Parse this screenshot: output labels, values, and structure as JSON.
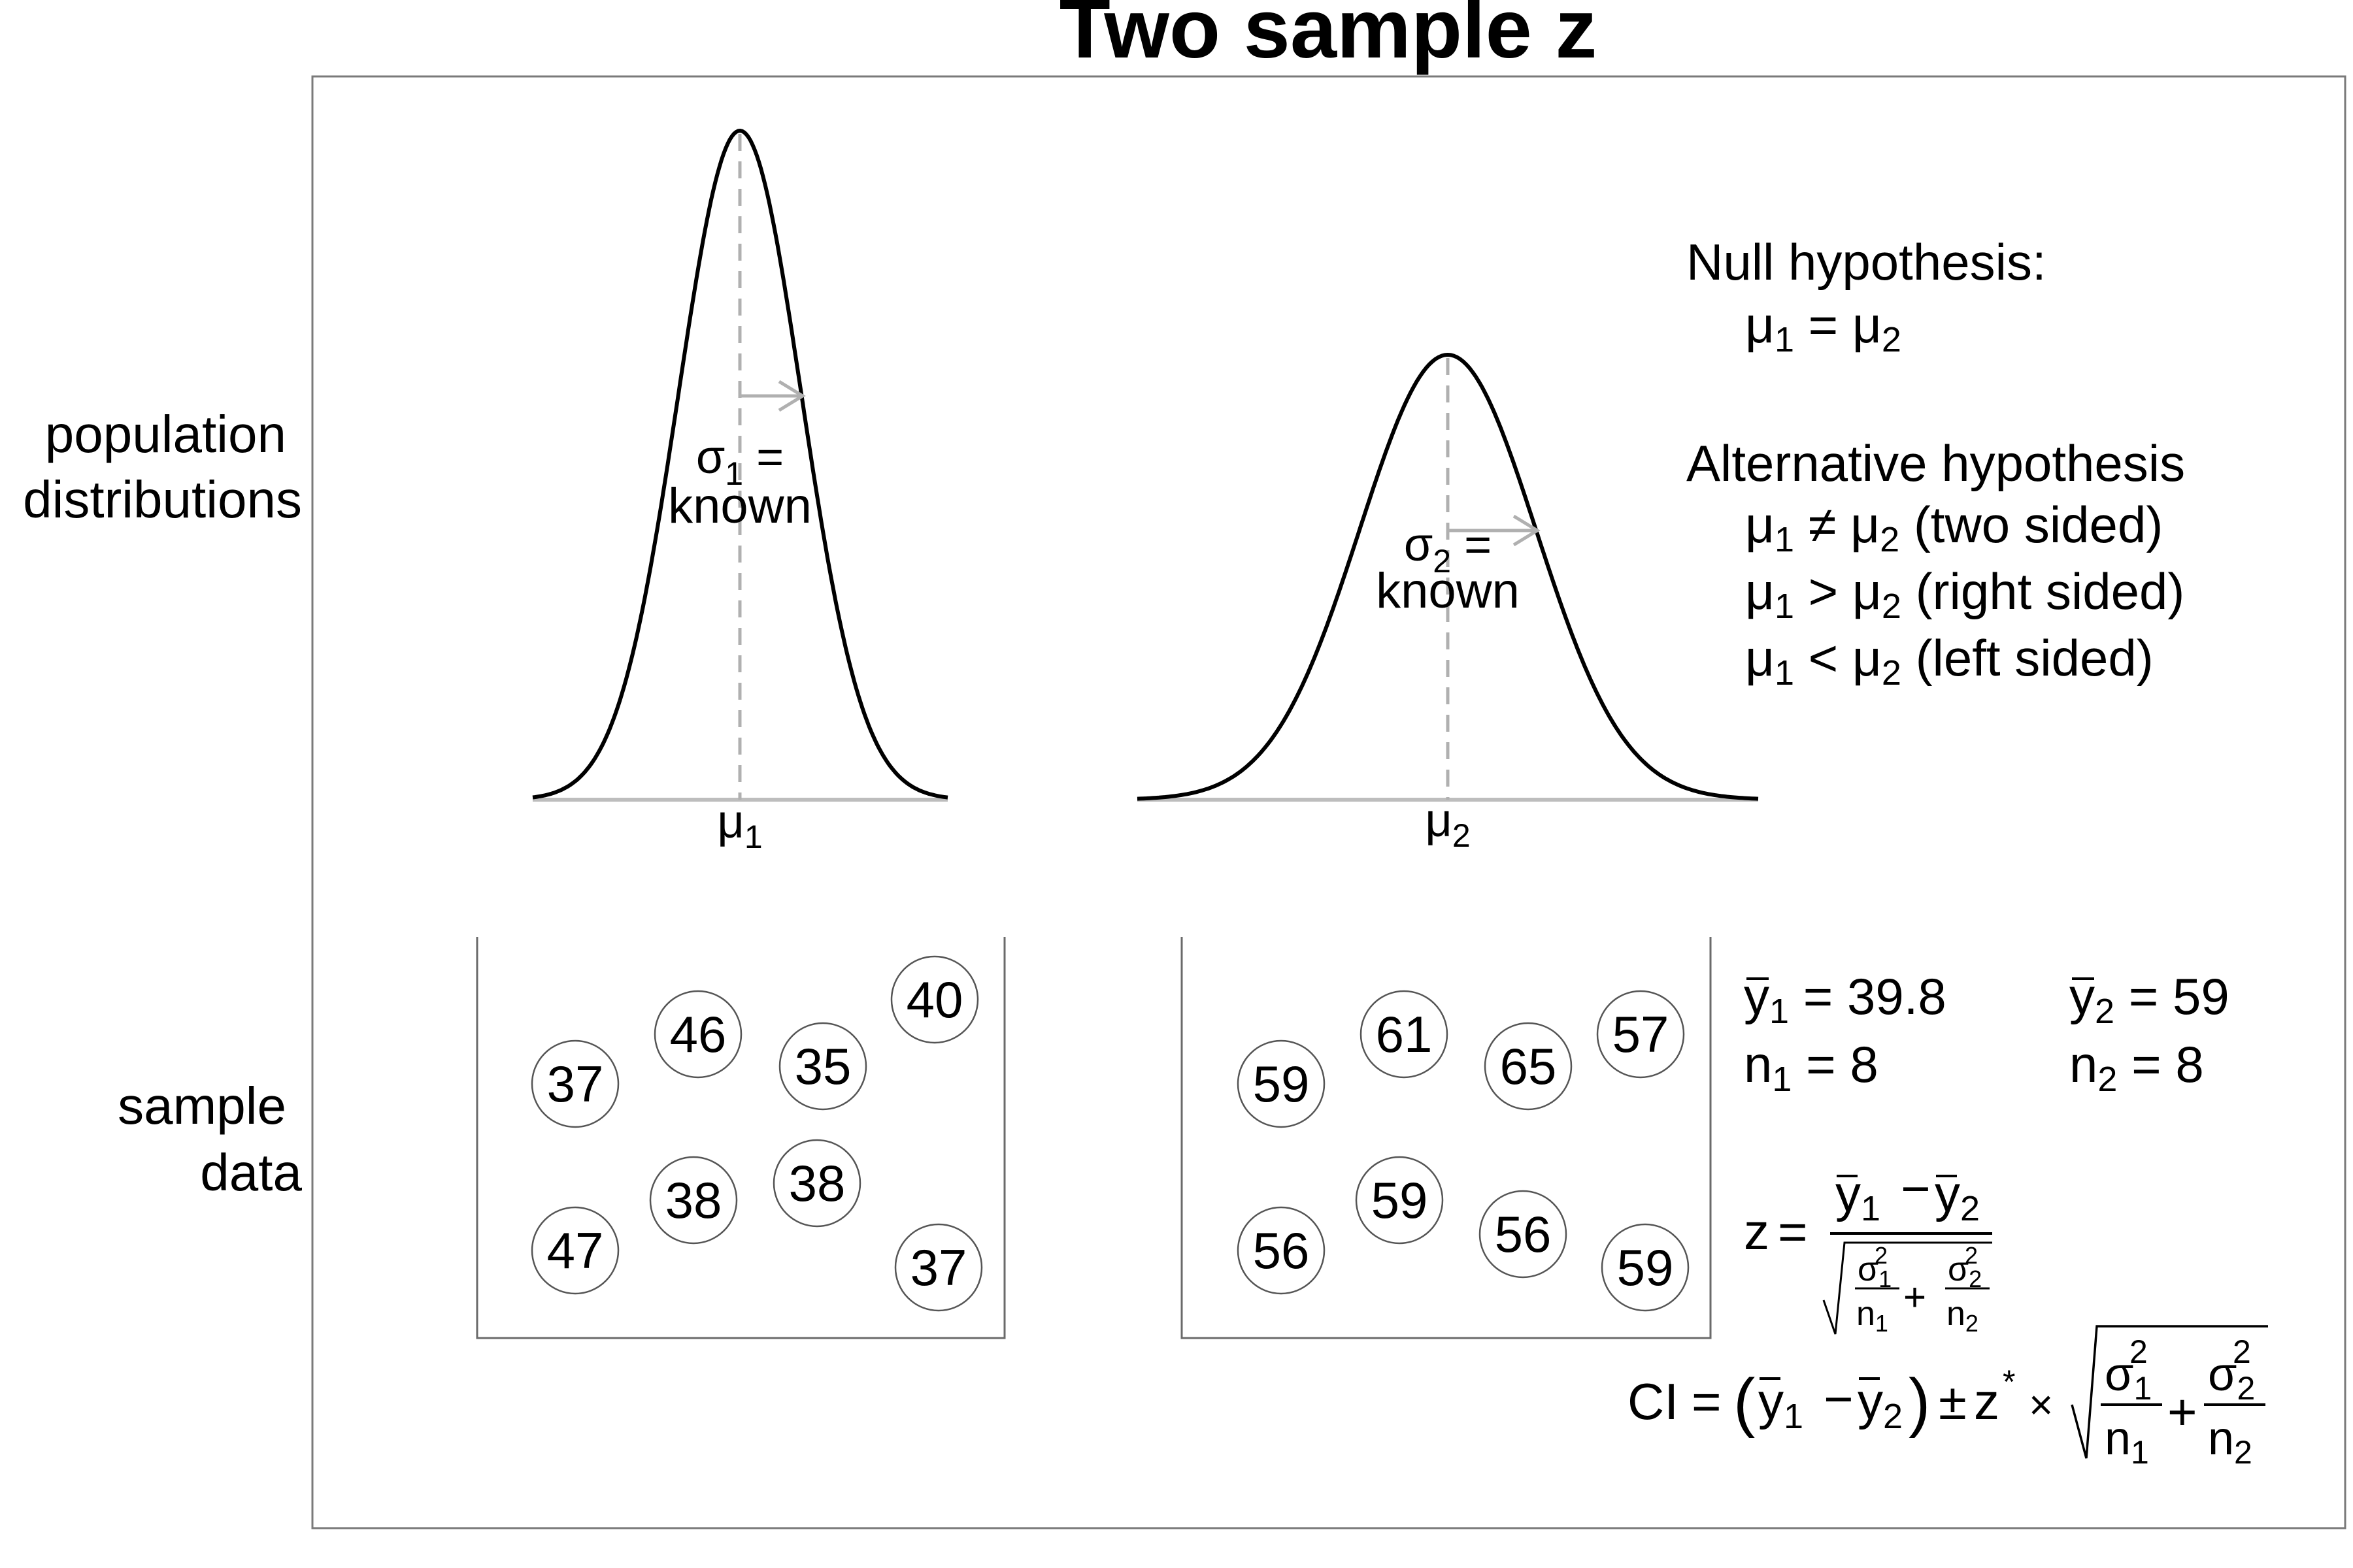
{
  "title": "Two sample z",
  "row_labels": {
    "population": [
      "population",
      "distributions"
    ],
    "sample": [
      "sample",
      "data"
    ]
  },
  "populations": [
    {
      "mu_sym": "μ",
      "sub": "1",
      "sigma_sym": "σ",
      "sigma_eq": " =",
      "known": "known"
    },
    {
      "mu_sym": "μ",
      "sub": "2",
      "sigma_sym": "σ",
      "sigma_eq": " =",
      "known": "known"
    }
  ],
  "hypotheses": {
    "null_header": "Null hypothesis:",
    "null": {
      "a": "μ",
      "a_sub": "1",
      "op": " = ",
      "b": "μ",
      "b_sub": "2",
      "note": ""
    },
    "alt_header": "Alternative hypothesis",
    "alternatives": [
      {
        "a": "μ",
        "a_sub": "1",
        "op": " ≠ ",
        "b": "μ",
        "b_sub": "2",
        "note": " (two sided)"
      },
      {
        "a": "μ",
        "a_sub": "1",
        "op": " > ",
        "b": "μ",
        "b_sub": "2",
        "note": " (right sided)"
      },
      {
        "a": "μ",
        "a_sub": "1",
        "op": " < ",
        "b": "μ",
        "b_sub": "2",
        "note": " (left sided)"
      }
    ]
  },
  "samples": [
    {
      "values": [
        "37",
        "46",
        "35",
        "40",
        "47",
        "38",
        "38",
        "37"
      ]
    },
    {
      "values": [
        "59",
        "61",
        "65",
        "57",
        "56",
        "59",
        "56",
        "59"
      ]
    }
  ],
  "stats": {
    "g1": {
      "ybar_sym": "y",
      "sub": "1",
      "mean_eq": " = 39.8",
      "n_sym": "n",
      "n_eq": " = 8"
    },
    "g2": {
      "ybar_sym": "y",
      "sub": "2",
      "mean_eq": " = 59",
      "n_sym": "n",
      "n_eq": " = 8"
    }
  },
  "formulas": {
    "z_lhs": "z",
    "eq": "=",
    "y": "y",
    "minus": "−",
    "plus": "+",
    "sigma": "σ",
    "n": "n",
    "sq": "2",
    "s1": "1",
    "s2": "2",
    "ci_lhs": "CI",
    "lparen": "(",
    "rparen": ")",
    "pm": "±",
    "zstar": "z",
    "star": "*",
    "times": "×"
  }
}
